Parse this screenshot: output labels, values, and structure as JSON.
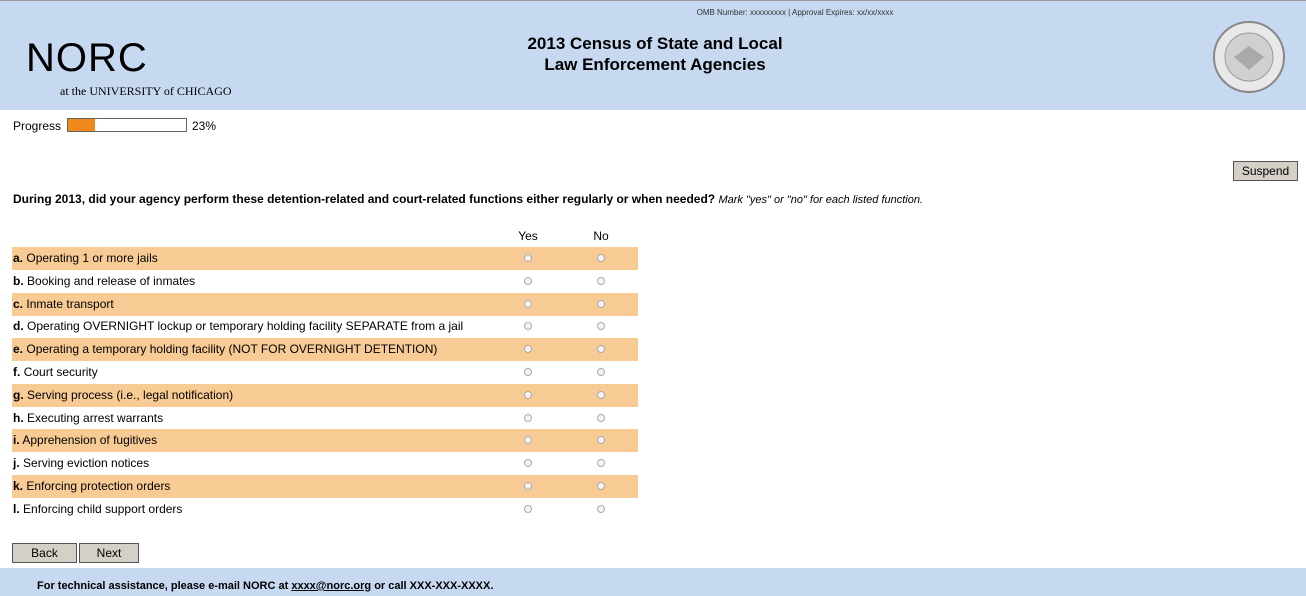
{
  "header": {
    "omb": "OMB Number: xxxxxxxxx | Approval Expires: xx/xx/xxxx",
    "title_line1": "2013 Census of State and Local",
    "title_line2": "Law Enforcement Agencies",
    "logo": "NORC",
    "logo_sub": "at the UNIVERSITY of CHICAGO"
  },
  "progress": {
    "label": "Progress",
    "value": 23,
    "value_label": "23%"
  },
  "suspend": "Suspend",
  "question": {
    "text": "During 2013, did your agency perform these detention-related and court-related functions either regularly or when needed?",
    "instruction": "Mark \"yes\" or \"no\" for each listed function."
  },
  "table": {
    "columns": [
      "Yes",
      "No"
    ],
    "rows": [
      {
        "letter": "a.",
        "text": "Operating 1 or more jails"
      },
      {
        "letter": "b.",
        "text": "Booking and release of inmates"
      },
      {
        "letter": "c.",
        "text": "Inmate transport"
      },
      {
        "letter": "d.",
        "text": "Operating OVERNIGHT lockup or temporary holding facility SEPARATE from a jail"
      },
      {
        "letter": "e.",
        "text": "Operating a temporary holding facility (NOT FOR OVERNIGHT DETENTION)"
      },
      {
        "letter": "f.",
        "text": "Court security"
      },
      {
        "letter": "g.",
        "text": "Serving process (i.e., legal notification)"
      },
      {
        "letter": "h.",
        "text": "Executing arrest warrants"
      },
      {
        "letter": "i.",
        "text": "Apprehension of fugitives"
      },
      {
        "letter": "j.",
        "text": "Serving eviction notices"
      },
      {
        "letter": "k.",
        "text": "Enforcing protection orders"
      },
      {
        "letter": "l.",
        "text": "Enforcing child support orders"
      }
    ]
  },
  "buttons": {
    "back": "Back",
    "next": "Next"
  },
  "footer": {
    "before": "For technical assistance, please e-mail NORC at ",
    "email": "xxxx@norc.org",
    "after": " or call XXX-XXX-XXXX."
  }
}
